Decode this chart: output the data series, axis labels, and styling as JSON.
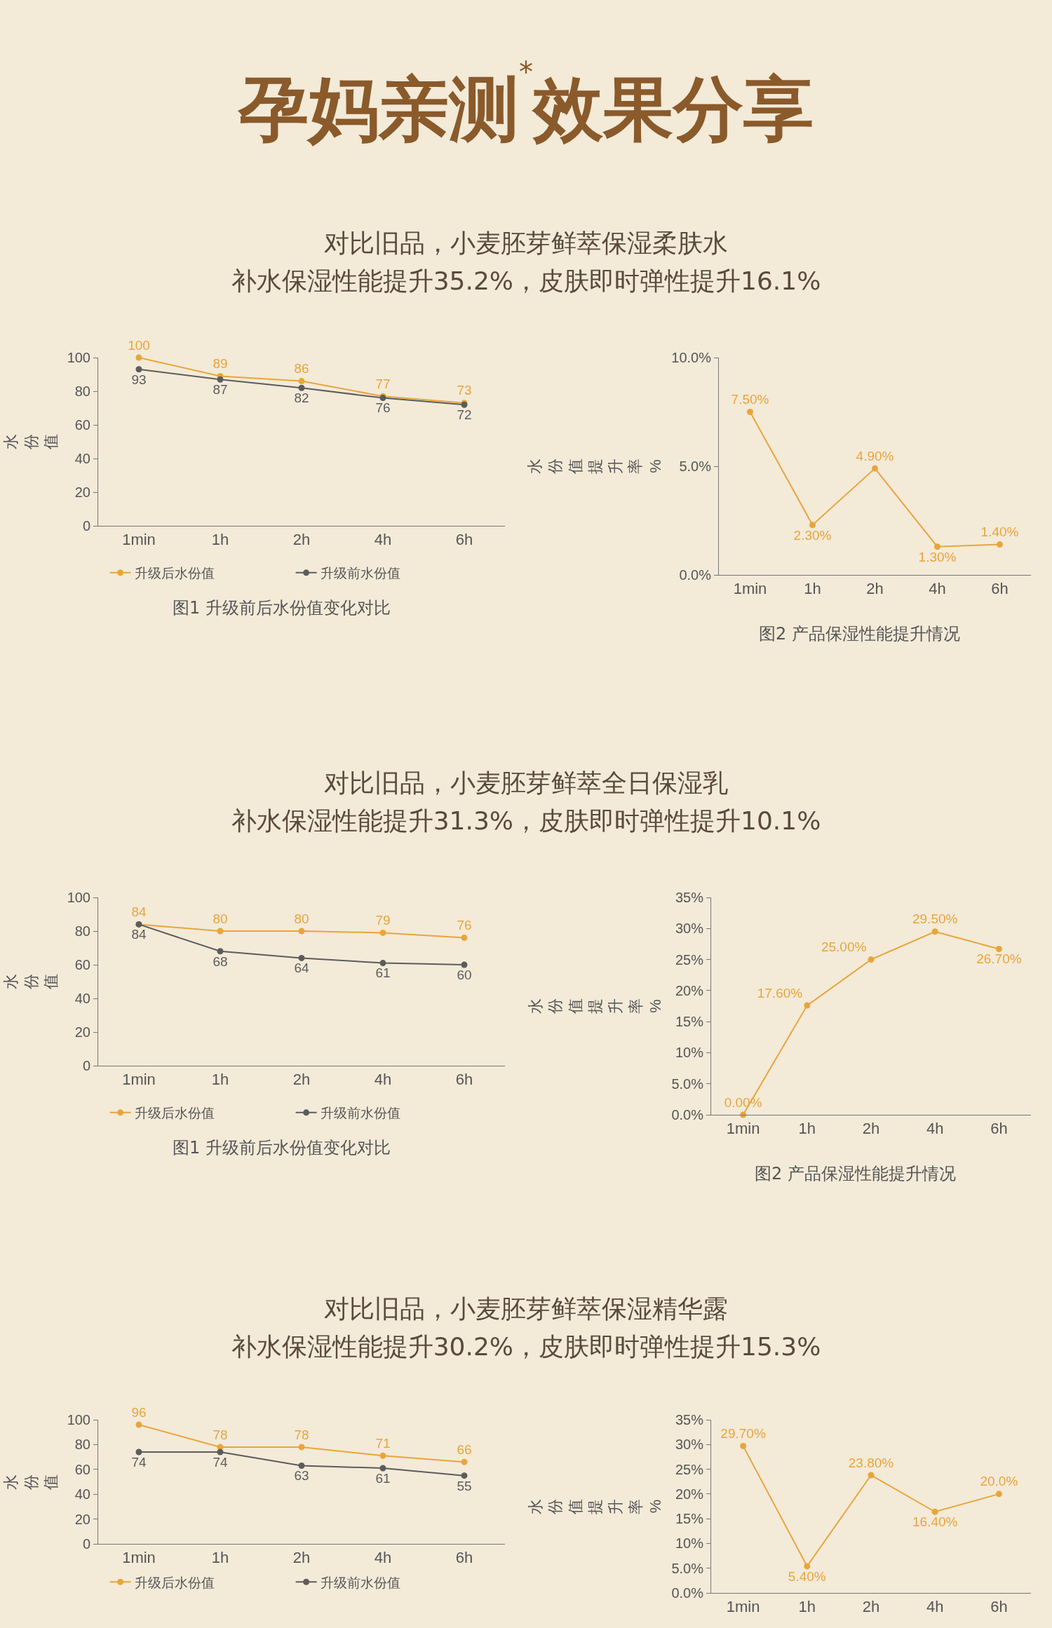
{
  "chart_data": [
    {
      "type": "line",
      "title": "对比旧品，小麦胚芽鲜萃保湿柔肤水",
      "subtitle": "补水保湿性能提升35.2%，皮肤即时弹性提升16.1%",
      "ylabel": "水份值",
      "categories": [
        "1min",
        "1h",
        "2h",
        "4h",
        "6h"
      ],
      "series": [
        {
          "name": "升级后水份值",
          "color": "#e8a53c",
          "values": [
            100,
            89,
            86,
            77,
            73
          ]
        },
        {
          "name": "升级前水份值",
          "color": "#5c5c5c",
          "values": [
            93,
            87,
            82,
            76,
            72
          ]
        }
      ],
      "ylim": [
        0,
        100
      ],
      "yticks": [
        0,
        20,
        40,
        60,
        80,
        100
      ],
      "marker": "circle",
      "data_labels": true,
      "legend": "bottom",
      "grid": false,
      "annotations": [
        "孕妈亲测$^{*}$效果分享",
        "图1 升级前后水份值变化对比"
      ]
    },
    {
      "type": "line",
      "ylabel": "水份值提升率%",
      "categories": [
        "1min",
        "1h",
        "2h",
        "4h",
        "6h"
      ],
      "series": [
        {
          "color": "#e8a53c",
          "values": [
            7.5,
            2.3,
            4.9,
            1.3,
            1.4
          ],
          "value_labels": [
            "7.50%",
            "2.30%",
            "4.90%",
            "1.30%",
            "1.40%"
          ]
        }
      ],
      "ylim": [
        0,
        10
      ],
      "yticks": [
        {
          "value": 0,
          "label": "0.0%"
        },
        {
          "value": 5,
          "label": "5.0%"
        },
        {
          "value": 10,
          "label": "10.0%"
        }
      ],
      "marker": "circle",
      "grid": false,
      "annotations": [
        "图2 产品保湿性能提升情况"
      ]
    },
    {
      "type": "line",
      "title": "对比旧品，小麦胚芽鲜萃全日保湿乳",
      "subtitle": "补水保湿性能提升31.3%，皮肤即时弹性提升10.1%",
      "ylabel": "水份值",
      "categories": [
        "1min",
        "1h",
        "2h",
        "4h",
        "6h"
      ],
      "series": [
        {
          "name": "升级后水份值",
          "color": "#e8a53c",
          "values": [
            84,
            80,
            80,
            79,
            76
          ]
        },
        {
          "name": "升级前水份值",
          "color": "#5c5c5c",
          "values": [
            84,
            68,
            64,
            61,
            60
          ]
        }
      ],
      "ylim": [
        0,
        100
      ],
      "yticks": [
        0,
        20,
        40,
        60,
        80,
        100
      ],
      "marker": "circle",
      "data_labels": true,
      "legend": "bottom",
      "grid": false,
      "annotations": [
        "图1 升级前后水份值变化对比"
      ]
    },
    {
      "type": "line",
      "ylabel": "水份值提升率%",
      "categories": [
        "1min",
        "1h",
        "2h",
        "4h",
        "6h"
      ],
      "series": [
        {
          "color": "#e8a53c",
          "values": [
            0,
            17.6,
            25,
            29.5,
            26.7
          ],
          "value_labels": [
            "0.00%",
            "17.60%",
            "25.00%",
            "29.50%",
            "26.70%"
          ]
        }
      ],
      "ylim": [
        0,
        35
      ],
      "yticks": [
        {
          "value": 0,
          "label": "0.0%"
        },
        {
          "value": 5,
          "label": "5.0%"
        },
        {
          "value": 10,
          "label": "10%"
        },
        {
          "value": 15,
          "label": "15%"
        },
        {
          "value": 20,
          "label": "20%"
        },
        {
          "value": 25,
          "label": "25%"
        },
        {
          "value": 30,
          "label": "30%"
        },
        {
          "value": 35,
          "label": "35%"
        }
      ],
      "marker": "circle",
      "grid": false,
      "annotations": [
        "图2 产品保湿性能提升情况"
      ]
    },
    {
      "type": "line",
      "title": "对比旧品，小麦胚芽鲜萃保湿精华露",
      "subtitle": "补水保湿性能提升30.2%，皮肤即时弹性提升15.3%",
      "ylabel": "水份值",
      "categories": [
        "1min",
        "1h",
        "2h",
        "4h",
        "6h"
      ],
      "series": [
        {
          "name": "升级后水份值",
          "color": "#e8a53c",
          "values": [
            96,
            78,
            78,
            71,
            66
          ]
        },
        {
          "name": "升级前水份值",
          "color": "#5c5c5c",
          "values": [
            74,
            74,
            63,
            61,
            55
          ]
        }
      ],
      "ylim": [
        0,
        100
      ],
      "yticks": [
        0,
        20,
        40,
        60,
        80,
        100
      ],
      "marker": "circle",
      "data_labels": true,
      "legend": "bottom",
      "grid": false
    },
    {
      "type": "line",
      "ylabel": "水份值提升率%",
      "categories": [
        "1min",
        "1h",
        "2h",
        "4h",
        "6h"
      ],
      "series": [
        {
          "color": "#e8a53c",
          "values": [
            29.7,
            5.4,
            23.8,
            16.4,
            20
          ],
          "value_labels": [
            "29.70%",
            "5.40%",
            "23.80%",
            "16.40%",
            "20.0%"
          ]
        }
      ],
      "ylim": [
        0,
        35
      ],
      "yticks": [
        {
          "value": 0,
          "label": "0.0%"
        },
        {
          "value": 5,
          "label": "5.0%"
        },
        {
          "value": 10,
          "label": "10%"
        },
        {
          "value": 15,
          "label": "15%"
        },
        {
          "value": 20,
          "label": "20%"
        },
        {
          "value": 25,
          "label": "25%"
        },
        {
          "value": 30,
          "label": "30%"
        },
        {
          "value": 35,
          "label": "35%"
        }
      ],
      "marker": "circle",
      "grid": false
    }
  ]
}
